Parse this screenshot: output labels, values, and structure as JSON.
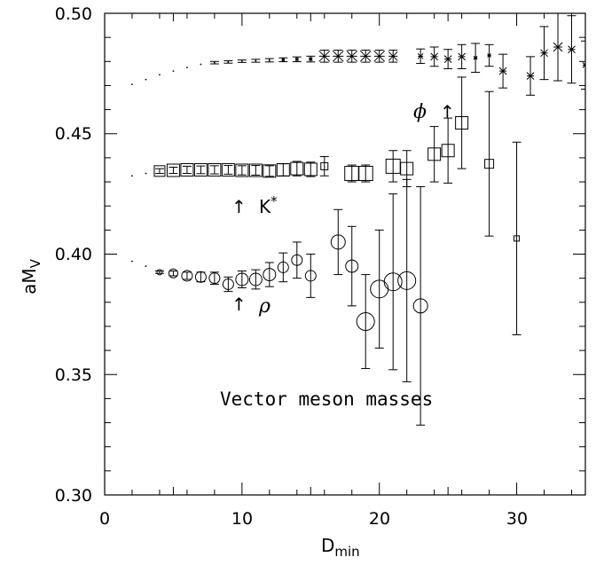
{
  "chart_data": {
    "type": "scatter",
    "title": "Vector meson masses",
    "xlabel_main": "D",
    "xlabel_sub": "min",
    "ylabel_main": "aM",
    "ylabel_sub": "V",
    "xlim": [
      0,
      35
    ],
    "ylim": [
      0.3,
      0.5
    ],
    "x_ticks": [
      0,
      10,
      20,
      30
    ],
    "y_ticks": [
      0.3,
      0.35,
      0.4,
      0.45,
      0.5
    ],
    "y_tick_labels": [
      "0.30",
      "0.35",
      "0.40",
      "0.45",
      "0.50"
    ],
    "annotations": {
      "phi_label": "ϕ",
      "kstar_label": "K",
      "kstar_sup": "*",
      "rho_label": "ρ",
      "arrow": "↑"
    },
    "series": [
      {
        "name": "ϕ",
        "marker": "burst",
        "points": [
          {
            "x": 2,
            "y": 0.4705,
            "e": 0,
            "s": 0.5
          },
          {
            "x": 3,
            "y": 0.4725,
            "e": 0,
            "s": 0.5
          },
          {
            "x": 4,
            "y": 0.4745,
            "e": 0,
            "s": 0.5
          },
          {
            "x": 5,
            "y": 0.476,
            "e": 0,
            "s": 0.6
          },
          {
            "x": 6,
            "y": 0.4775,
            "e": 0,
            "s": 0.6
          },
          {
            "x": 7,
            "y": 0.4788,
            "e": 0,
            "s": 0.8
          },
          {
            "x": 8,
            "y": 0.4795,
            "e": 0.0005,
            "s": 1
          },
          {
            "x": 9,
            "y": 0.4798,
            "e": 0.0005,
            "s": 1
          },
          {
            "x": 10,
            "y": 0.4801,
            "e": 0.0005,
            "s": 1.2
          },
          {
            "x": 11,
            "y": 0.4803,
            "e": 0.0006,
            "s": 1.3
          },
          {
            "x": 12,
            "y": 0.4805,
            "e": 0.0007,
            "s": 1.4
          },
          {
            "x": 13,
            "y": 0.4807,
            "e": 0.0008,
            "s": 1.6
          },
          {
            "x": 14,
            "y": 0.4809,
            "e": 0.001,
            "s": 1.8
          },
          {
            "x": 15,
            "y": 0.481,
            "e": 0.0012,
            "s": 2
          },
          {
            "x": 16,
            "y": 0.4822,
            "e": 0.0025,
            "s": 6
          },
          {
            "x": 17,
            "y": 0.4822,
            "e": 0.0025,
            "s": 6
          },
          {
            "x": 18,
            "y": 0.4822,
            "e": 0.0025,
            "s": 6
          },
          {
            "x": 19,
            "y": 0.4822,
            "e": 0.0025,
            "s": 6
          },
          {
            "x": 20,
            "y": 0.4822,
            "e": 0.0025,
            "s": 6
          },
          {
            "x": 21,
            "y": 0.4822,
            "e": 0.0025,
            "s": 5
          },
          {
            "x": 23,
            "y": 0.4822,
            "e": 0.003,
            "s": 3
          },
          {
            "x": 24,
            "y": 0.482,
            "e": 0.004,
            "s": 4
          },
          {
            "x": 25,
            "y": 0.481,
            "e": 0.004,
            "s": 4
          },
          {
            "x": 26,
            "y": 0.482,
            "e": 0.005,
            "s": 4
          },
          {
            "x": 27,
            "y": 0.4815,
            "e": 0.006,
            "s": 2
          },
          {
            "x": 28,
            "y": 0.4825,
            "e": 0.0045,
            "s": 2
          },
          {
            "x": 29,
            "y": 0.476,
            "e": 0.007,
            "s": 4
          },
          {
            "x": 31,
            "y": 0.474,
            "e": 0.008,
            "s": 4
          },
          {
            "x": 32,
            "y": 0.4835,
            "e": 0.011,
            "s": 4
          },
          {
            "x": 33,
            "y": 0.486,
            "e": 0.014,
            "s": 5
          },
          {
            "x": 34,
            "y": 0.485,
            "e": 0.014,
            "s": 4
          },
          {
            "x": 35,
            "y": 0.4785,
            "e": 0.01,
            "s": 3
          }
        ]
      },
      {
        "name": "K*",
        "marker": "square",
        "points": [
          {
            "x": 2,
            "y": 0.4325,
            "e": 0,
            "s": 0.5
          },
          {
            "x": 3,
            "y": 0.4335,
            "e": 0,
            "s": 0.5
          },
          {
            "x": 4,
            "y": 0.4345,
            "e": 0.001,
            "s": 6
          },
          {
            "x": 5,
            "y": 0.4348,
            "e": 0.0013,
            "s": 7
          },
          {
            "x": 6,
            "y": 0.435,
            "e": 0.0015,
            "s": 7
          },
          {
            "x": 7,
            "y": 0.435,
            "e": 0.0016,
            "s": 7
          },
          {
            "x": 8,
            "y": 0.435,
            "e": 0.0017,
            "s": 7
          },
          {
            "x": 9,
            "y": 0.435,
            "e": 0.0018,
            "s": 7
          },
          {
            "x": 10,
            "y": 0.4348,
            "e": 0.0019,
            "s": 7
          },
          {
            "x": 11,
            "y": 0.4348,
            "e": 0.002,
            "s": 7
          },
          {
            "x": 12,
            "y": 0.4345,
            "e": 0.0022,
            "s": 7
          },
          {
            "x": 13,
            "y": 0.435,
            "e": 0.0025,
            "s": 7
          },
          {
            "x": 14,
            "y": 0.4355,
            "e": 0.003,
            "s": 7
          },
          {
            "x": 15,
            "y": 0.4352,
            "e": 0.003,
            "s": 7
          },
          {
            "x": 16,
            "y": 0.4365,
            "e": 0.004,
            "s": 4
          },
          {
            "x": 18,
            "y": 0.4335,
            "e": 0.0035,
            "s": 8
          },
          {
            "x": 19,
            "y": 0.4335,
            "e": 0.0035,
            "s": 8
          },
          {
            "x": 21,
            "y": 0.4365,
            "e": 0.0065,
            "s": 8
          },
          {
            "x": 22,
            "y": 0.4355,
            "e": 0.0075,
            "s": 7
          },
          {
            "x": 24,
            "y": 0.4415,
            "e": 0.0115,
            "s": 7
          },
          {
            "x": 25,
            "y": 0.443,
            "e": 0.0135,
            "s": 7
          },
          {
            "x": 26,
            "y": 0.4545,
            "e": 0.019,
            "s": 7
          },
          {
            "x": 28,
            "y": 0.4375,
            "e": 0.03,
            "s": 5
          },
          {
            "x": 30,
            "y": 0.4065,
            "e": 0.04,
            "s": 3
          }
        ]
      },
      {
        "name": "ρ",
        "marker": "circle",
        "points": [
          {
            "x": 2,
            "y": 0.397,
            "e": 0,
            "s": 0.5
          },
          {
            "x": 3,
            "y": 0.395,
            "e": 0,
            "s": 0.5
          },
          {
            "x": 4,
            "y": 0.3925,
            "e": 0.0005,
            "s": 3
          },
          {
            "x": 5,
            "y": 0.392,
            "e": 0.001,
            "s": 5
          },
          {
            "x": 6,
            "y": 0.391,
            "e": 0.0015,
            "s": 6
          },
          {
            "x": 7,
            "y": 0.3905,
            "e": 0.002,
            "s": 6
          },
          {
            "x": 8,
            "y": 0.39,
            "e": 0.0025,
            "s": 6
          },
          {
            "x": 9,
            "y": 0.3875,
            "e": 0.003,
            "s": 6
          },
          {
            "x": 10,
            "y": 0.3895,
            "e": 0.0035,
            "s": 7
          },
          {
            "x": 11,
            "y": 0.3895,
            "e": 0.004,
            "s": 7
          },
          {
            "x": 12,
            "y": 0.3915,
            "e": 0.005,
            "s": 7
          },
          {
            "x": 13,
            "y": 0.3945,
            "e": 0.006,
            "s": 6
          },
          {
            "x": 14,
            "y": 0.3975,
            "e": 0.0075,
            "s": 6
          },
          {
            "x": 15,
            "y": 0.391,
            "e": 0.009,
            "s": 6
          },
          {
            "x": 17,
            "y": 0.405,
            "e": 0.0135,
            "s": 8
          },
          {
            "x": 18,
            "y": 0.395,
            "e": 0.0165,
            "s": 7
          },
          {
            "x": 19,
            "y": 0.372,
            "e": 0.0195,
            "s": 10
          },
          {
            "x": 20,
            "y": 0.3855,
            "e": 0.0245,
            "s": 10
          },
          {
            "x": 21,
            "y": 0.3885,
            "e": 0.0365,
            "s": 10
          },
          {
            "x": 22,
            "y": 0.389,
            "e": 0.042,
            "s": 10
          },
          {
            "x": 23,
            "y": 0.3785,
            "e": 0.0495,
            "s": 8
          }
        ]
      }
    ]
  }
}
